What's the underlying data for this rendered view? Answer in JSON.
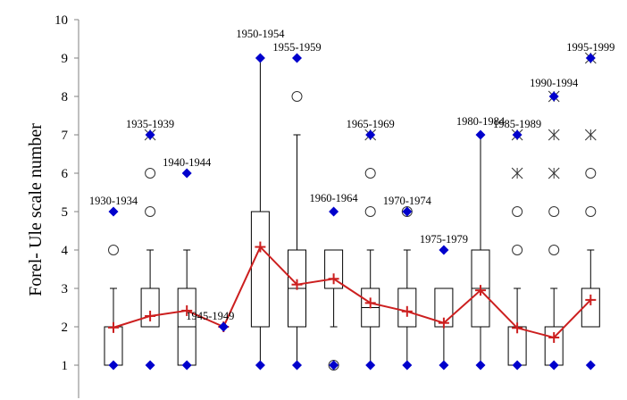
{
  "chart_data": {
    "type": "box",
    "title": "",
    "xlabel": "",
    "ylabel": "Forel- Ule scale number",
    "ylim": [
      0,
      10
    ],
    "yticks": [
      1,
      2,
      3,
      4,
      5,
      6,
      7,
      8,
      9,
      10
    ],
    "grid": false,
    "colors": {
      "mean_line": "#cc1f1f",
      "extreme_marker": "#0000cc",
      "box": "#000000",
      "axis": "#808080"
    },
    "series": [
      {
        "label": "1930-1934",
        "min": 1,
        "q1": 1,
        "median": 1,
        "q3": 2,
        "whisker_low": 1,
        "whisker_high": 3,
        "max": 5,
        "mean": 1.98,
        "outliers": [
          4
        ],
        "extremes": []
      },
      {
        "label": "1935-1939",
        "min": 1,
        "q1": 2,
        "median": 2,
        "q3": 3,
        "whisker_low": 2,
        "whisker_high": 4,
        "max": 7,
        "mean": 2.28,
        "outliers": [
          5,
          6
        ],
        "extremes": [
          7
        ]
      },
      {
        "label": "1940-1944",
        "min": 1,
        "q1": 1,
        "median": 2,
        "q3": 3,
        "whisker_low": 1,
        "whisker_high": 4,
        "max": 6,
        "mean": 2.42,
        "outliers": [],
        "extremes": []
      },
      {
        "label": "1945-1949",
        "min": 2,
        "q1": 2,
        "median": 2,
        "q3": 2,
        "whisker_low": 2,
        "whisker_high": 2,
        "max": 2,
        "mean": 2.0,
        "outliers": [],
        "extremes": []
      },
      {
        "label": "1950-1954",
        "min": 1,
        "q1": 2,
        "median": 2,
        "q3": 5,
        "whisker_low": 1,
        "whisker_high": 9,
        "max": 9,
        "mean": 4.08,
        "outliers": [],
        "extremes": []
      },
      {
        "label": "1955-1959",
        "min": 1,
        "q1": 2,
        "median": 3,
        "q3": 4,
        "whisker_low": 1,
        "whisker_high": 7,
        "max": 9,
        "mean": 3.1,
        "outliers": [
          8
        ],
        "extremes": []
      },
      {
        "label": "1960-1964",
        "min": 1,
        "q1": 3,
        "median": 3,
        "q3": 4,
        "whisker_low": 2,
        "whisker_high": 4,
        "max": 5,
        "mean": 3.25,
        "outliers": [
          1
        ],
        "extremes": []
      },
      {
        "label": "1965-1969",
        "min": 1,
        "q1": 2,
        "median": 2.5,
        "q3": 3,
        "whisker_low": 1,
        "whisker_high": 4,
        "max": 7,
        "mean": 2.62,
        "outliers": [
          5,
          6
        ],
        "extremes": [
          7
        ]
      },
      {
        "label": "1970-1974",
        "min": 1,
        "q1": 2,
        "median": 2,
        "q3": 3,
        "whisker_low": 1,
        "whisker_high": 4,
        "max": 5,
        "mean": 2.4,
        "outliers": [
          5
        ],
        "extremes": []
      },
      {
        "label": "1975-1979",
        "min": 1,
        "q1": 2,
        "median": 2,
        "q3": 3,
        "whisker_low": 1,
        "whisker_high": 3,
        "max": 4,
        "mean": 2.1,
        "outliers": [],
        "extremes": []
      },
      {
        "label": "1980-1984",
        "min": 1,
        "q1": 2,
        "median": 3,
        "q3": 4,
        "whisker_low": 1,
        "whisker_high": 7,
        "max": 7,
        "mean": 2.95,
        "outliers": [],
        "extremes": []
      },
      {
        "label": "1985-1989",
        "min": 1,
        "q1": 1,
        "median": 2,
        "q3": 2,
        "whisker_low": 1,
        "whisker_high": 3,
        "max": 7,
        "mean": 1.97,
        "outliers": [
          4,
          5
        ],
        "extremes": [
          6,
          7
        ]
      },
      {
        "label": "1990-1994",
        "min": 1,
        "q1": 1,
        "median": 2,
        "q3": 2,
        "whisker_low": 1,
        "whisker_high": 3,
        "max": 8,
        "mean": 1.72,
        "outliers": [
          4,
          5
        ],
        "extremes": [
          6,
          7,
          8
        ]
      },
      {
        "label": "1995-1999",
        "min": 1,
        "q1": 2,
        "median": 2,
        "q3": 3,
        "whisker_low": 2,
        "whisker_high": 4,
        "max": 9,
        "mean": 2.7,
        "outliers": [
          5,
          6
        ],
        "extremes": [
          7,
          9
        ]
      }
    ]
  }
}
